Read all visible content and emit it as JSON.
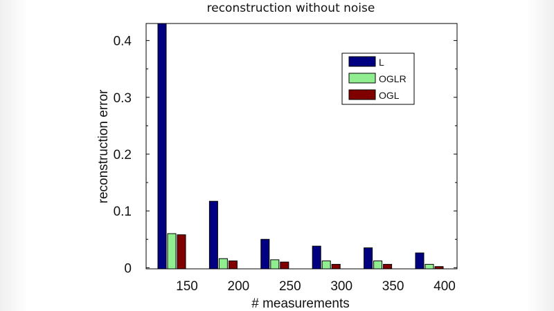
{
  "chart_data": {
    "type": "bar",
    "title": "reconstruction without noise",
    "xlabel": "# measurements",
    "ylabel": "reconstruction error",
    "categories": [
      "150",
      "200",
      "250",
      "300",
      "350",
      "400"
    ],
    "ylim": [
      -0.002,
      0.43
    ],
    "yticks": [
      {
        "value": 0,
        "label": "0"
      },
      {
        "value": 0.1,
        "label": "0.1"
      },
      {
        "value": 0.2,
        "label": "0.2"
      },
      {
        "value": 0.3,
        "label": "0.3"
      },
      {
        "value": 0.4,
        "label": "0.4"
      }
    ],
    "series": [
      {
        "name": "L",
        "color": "#000080",
        "values": [
          0.43,
          0.117,
          0.05,
          0.038,
          0.035,
          0.026
        ]
      },
      {
        "name": "OGLR",
        "color": "#90EE90",
        "values": [
          0.06,
          0.016,
          0.014,
          0.012,
          0.012,
          0.006
        ]
      },
      {
        "name": "OGL",
        "color": "#800000",
        "values": [
          0.058,
          0.012,
          0.01,
          0.006,
          0.006,
          0.002
        ]
      }
    ],
    "legend_position": "top-right",
    "grid": false
  }
}
